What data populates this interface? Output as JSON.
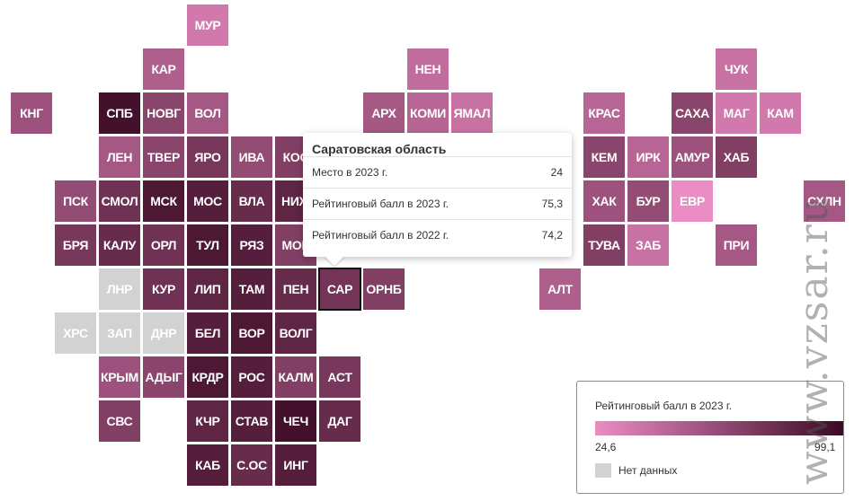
{
  "colors": {
    "scale_min": "#ec8cc4",
    "scale_max": "#3a0b24",
    "no_data": "#d2d2d2",
    "tile_text": "#ffffff"
  },
  "legend": {
    "title": "Рейтинговый балл в 2023 г.",
    "min_label": "24,6",
    "max_label": "99,1",
    "min": 24.6,
    "max": 99.1,
    "no_data_label": "Нет данных"
  },
  "tooltip": {
    "title": "Саратовская область",
    "rows": [
      {
        "label": "Место в 2023 г.",
        "value": "24"
      },
      {
        "label": "Рейтинговый балл в 2023 г.",
        "value": "75,3"
      },
      {
        "label": "Рейтинговый балл в 2022 г.",
        "value": "74,2"
      }
    ]
  },
  "watermark": "www.vzsar.ru",
  "tiles": [
    {
      "label": "МУР",
      "col": 4,
      "row": 0,
      "shade": 0.15
    },
    {
      "label": "КАР",
      "col": 3,
      "row": 1,
      "shade": 0.35
    },
    {
      "label": "НЕН",
      "col": 9,
      "row": 1,
      "shade": 0.25
    },
    {
      "label": "ЧУК",
      "col": 16,
      "row": 1,
      "shade": 0.2
    },
    {
      "label": "КНГ",
      "col": 0,
      "row": 2,
      "shade": 0.45
    },
    {
      "label": "СПБ",
      "col": 2,
      "row": 2,
      "shade": 0.95
    },
    {
      "label": "НОВГ",
      "col": 3,
      "row": 2,
      "shade": 0.55
    },
    {
      "label": "ВОЛ",
      "col": 4,
      "row": 2,
      "shade": 0.4
    },
    {
      "label": "АРХ",
      "col": 8,
      "row": 2,
      "shade": 0.4
    },
    {
      "label": "КОМИ",
      "col": 9,
      "row": 2,
      "shade": 0.3
    },
    {
      "label": "ЯМАЛ",
      "col": 10,
      "row": 2,
      "shade": 0.2
    },
    {
      "label": "КРАС",
      "col": 13,
      "row": 2,
      "shade": 0.3
    },
    {
      "label": "САХА",
      "col": 15,
      "row": 2,
      "shade": 0.55
    },
    {
      "label": "МАГ",
      "col": 16,
      "row": 2,
      "shade": 0.15
    },
    {
      "label": "КАМ",
      "col": 17,
      "row": 2,
      "shade": 0.15
    },
    {
      "label": "ЛЕН",
      "col": 2,
      "row": 3,
      "shade": 0.4
    },
    {
      "label": "ТВЕР",
      "col": 3,
      "row": 3,
      "shade": 0.55
    },
    {
      "label": "ЯРО",
      "col": 4,
      "row": 3,
      "shade": 0.65
    },
    {
      "label": "ИВА",
      "col": 5,
      "row": 3,
      "shade": 0.5
    },
    {
      "label": "КОС",
      "col": 6,
      "row": 3,
      "shade": 0.6
    },
    {
      "label": "КЕМ",
      "col": 13,
      "row": 3,
      "shade": 0.55
    },
    {
      "label": "ИРК",
      "col": 14,
      "row": 3,
      "shade": 0.3
    },
    {
      "label": "АМУР",
      "col": 15,
      "row": 3,
      "shade": 0.45
    },
    {
      "label": "ХАБ",
      "col": 16,
      "row": 3,
      "shade": 0.6
    },
    {
      "label": "ПСК",
      "col": 1,
      "row": 4,
      "shade": 0.5
    },
    {
      "label": "СМОЛ",
      "col": 2,
      "row": 4,
      "shade": 0.7
    },
    {
      "label": "МСК",
      "col": 3,
      "row": 4,
      "shade": 0.9
    },
    {
      "label": "МОС",
      "col": 4,
      "row": 4,
      "shade": 0.85
    },
    {
      "label": "ВЛА",
      "col": 5,
      "row": 4,
      "shade": 0.75
    },
    {
      "label": "НИЖ",
      "col": 6,
      "row": 4,
      "shade": 0.8
    },
    {
      "label": "ХАК",
      "col": 13,
      "row": 4,
      "shade": 0.45
    },
    {
      "label": "БУР",
      "col": 14,
      "row": 4,
      "shade": 0.5
    },
    {
      "label": "ЕВР",
      "col": 15,
      "row": 4,
      "shade": 0.0
    },
    {
      "label": "СХЛН",
      "col": 18,
      "row": 4,
      "shade": 0.4
    },
    {
      "label": "БРЯ",
      "col": 1,
      "row": 5,
      "shade": 0.65
    },
    {
      "label": "КАЛУ",
      "col": 2,
      "row": 5,
      "shade": 0.75
    },
    {
      "label": "ОРЛ",
      "col": 3,
      "row": 5,
      "shade": 0.7
    },
    {
      "label": "ТУЛ",
      "col": 4,
      "row": 5,
      "shade": 0.9
    },
    {
      "label": "РЯЗ",
      "col": 5,
      "row": 5,
      "shade": 0.85
    },
    {
      "label": "МОР",
      "col": 6,
      "row": 5,
      "shade": 0.6
    },
    {
      "label": "ТУВА",
      "col": 13,
      "row": 5,
      "shade": 0.6
    },
    {
      "label": "ЗАБ",
      "col": 14,
      "row": 5,
      "shade": 0.2
    },
    {
      "label": "ПРИ",
      "col": 16,
      "row": 5,
      "shade": 0.4
    },
    {
      "label": "ЛНР",
      "col": 2,
      "row": 6,
      "shade": null
    },
    {
      "label": "КУР",
      "col": 3,
      "row": 6,
      "shade": 0.7
    },
    {
      "label": "ЛИП",
      "col": 4,
      "row": 6,
      "shade": 0.8
    },
    {
      "label": "ТАМ",
      "col": 5,
      "row": 6,
      "shade": 0.85
    },
    {
      "label": "ПЕН",
      "col": 6,
      "row": 6,
      "shade": 0.75
    },
    {
      "label": "САР",
      "col": 7,
      "row": 6,
      "shade": 0.68,
      "active": true
    },
    {
      "label": "ОРНБ",
      "col": 8,
      "row": 6,
      "shade": 0.6
    },
    {
      "label": "АЛТ",
      "col": 12,
      "row": 6,
      "shade": 0.35
    },
    {
      "label": "ХРС",
      "col": 1,
      "row": 7,
      "shade": null
    },
    {
      "label": "ЗАП",
      "col": 2,
      "row": 7,
      "shade": null
    },
    {
      "label": "ДНР",
      "col": 3,
      "row": 7,
      "shade": null
    },
    {
      "label": "БЕЛ",
      "col": 4,
      "row": 7,
      "shade": 0.85
    },
    {
      "label": "ВОР",
      "col": 5,
      "row": 7,
      "shade": 0.9
    },
    {
      "label": "ВОЛГ",
      "col": 6,
      "row": 7,
      "shade": 0.8
    },
    {
      "label": "КРЫМ",
      "col": 2,
      "row": 8,
      "shade": 0.45
    },
    {
      "label": "АДЫГ",
      "col": 3,
      "row": 8,
      "shade": 0.55
    },
    {
      "label": "КРДР",
      "col": 4,
      "row": 8,
      "shade": 0.9
    },
    {
      "label": "РОС",
      "col": 5,
      "row": 8,
      "shade": 0.85
    },
    {
      "label": "КАЛМ",
      "col": 6,
      "row": 8,
      "shade": 0.6
    },
    {
      "label": "АСТ",
      "col": 7,
      "row": 8,
      "shade": 0.65
    },
    {
      "label": "СВС",
      "col": 2,
      "row": 9,
      "shade": 0.6
    },
    {
      "label": "КЧР",
      "col": 4,
      "row": 9,
      "shade": 0.8
    },
    {
      "label": "СТАВ",
      "col": 5,
      "row": 9,
      "shade": 0.85
    },
    {
      "label": "ЧЕЧ",
      "col": 6,
      "row": 9,
      "shade": 0.95
    },
    {
      "label": "ДАГ",
      "col": 7,
      "row": 9,
      "shade": 0.75
    },
    {
      "label": "КАБ",
      "col": 4,
      "row": 10,
      "shade": 0.85
    },
    {
      "label": "С.ОС",
      "col": 5,
      "row": 10,
      "shade": 0.75
    },
    {
      "label": "ИНГ",
      "col": 6,
      "row": 10,
      "shade": 0.85
    }
  ]
}
